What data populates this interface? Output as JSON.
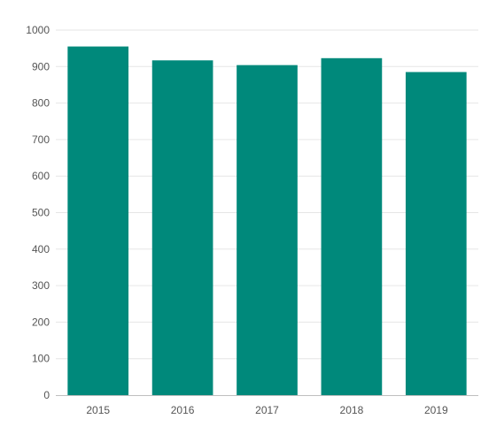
{
  "chart_data": {
    "type": "bar",
    "categories": [
      "2015",
      "2016",
      "2017",
      "2018",
      "2019"
    ],
    "values": [
      955,
      917,
      904,
      923,
      885
    ],
    "title": "",
    "xlabel": "",
    "ylabel": "",
    "ylim": [
      0,
      1000
    ],
    "yticks": [
      "0",
      "100",
      "200",
      "300",
      "400",
      "500",
      "600",
      "700",
      "800",
      "900",
      "1000"
    ],
    "grid": true,
    "legend": "none",
    "bar_color": "#00897b"
  }
}
